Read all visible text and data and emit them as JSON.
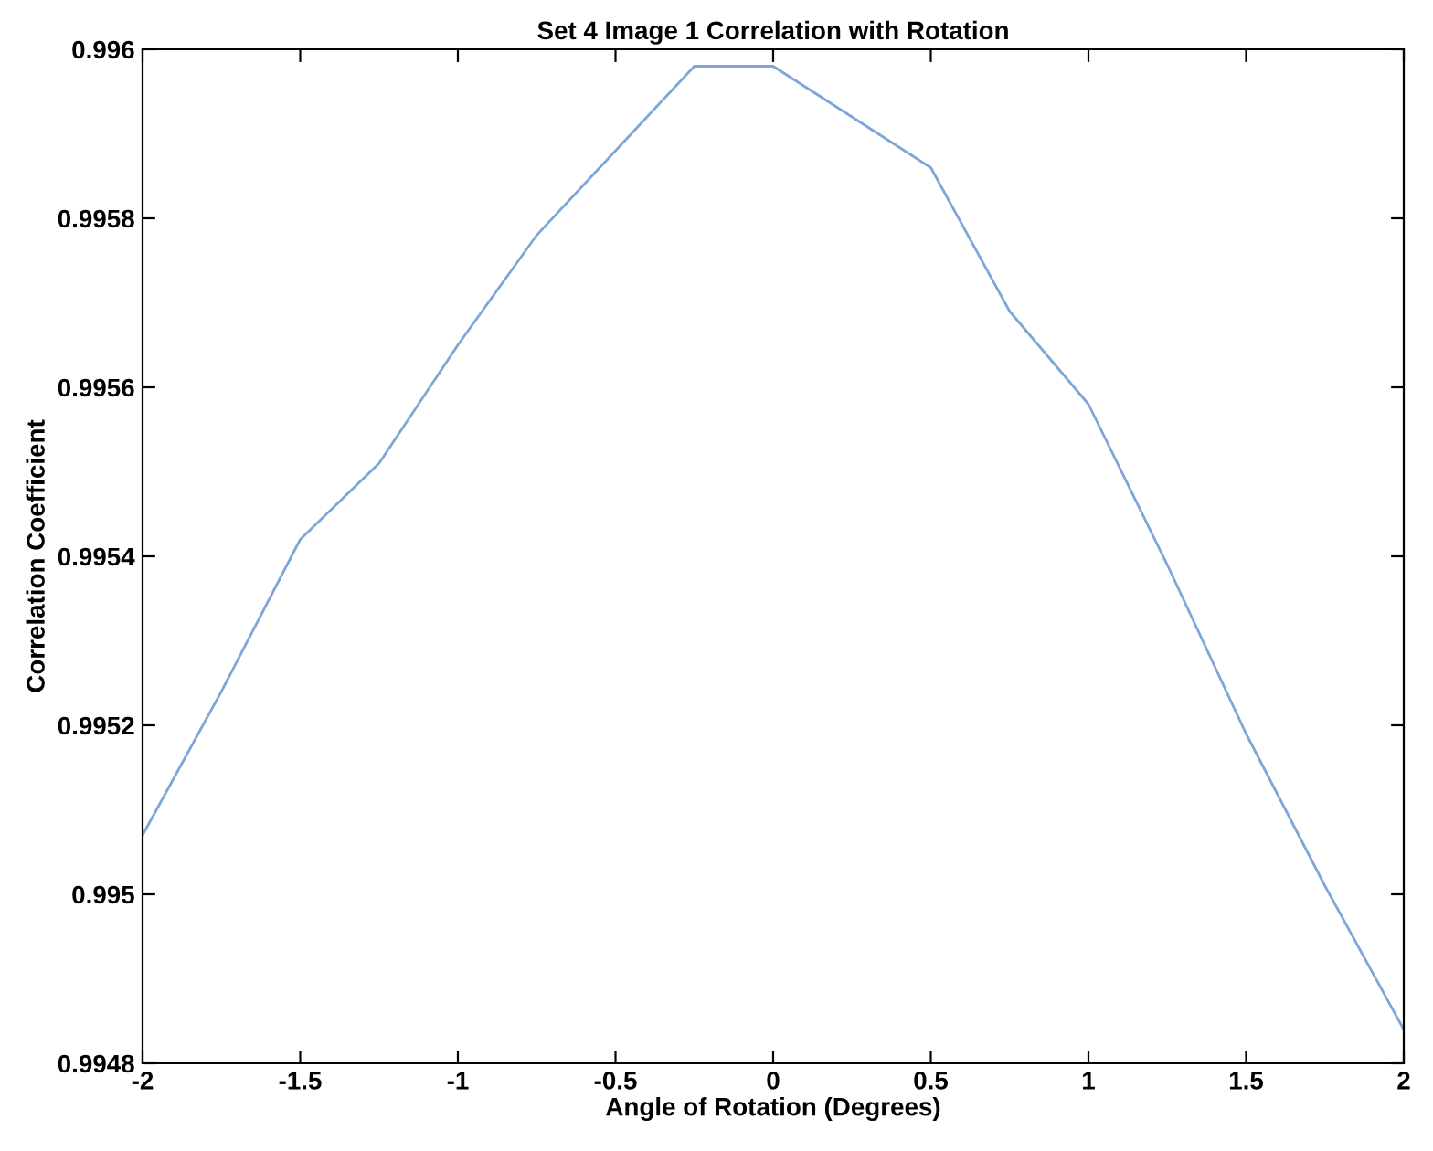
{
  "chart_data": {
    "type": "line",
    "title": "Set 4 Image 1 Correlation with Rotation",
    "xlabel": "Angle of Rotation (Degrees)",
    "ylabel": "Correlation Coefficient",
    "x": [
      -2,
      -1.75,
      -1.5,
      -1.25,
      -1,
      -0.75,
      -0.5,
      -0.25,
      0,
      0.25,
      0.5,
      0.75,
      1,
      1.25,
      1.5,
      1.75,
      2
    ],
    "series": [
      {
        "color": "#7ea6d8",
        "values": [
          0.99507,
          0.99524,
          0.99542,
          0.99551,
          0.99565,
          0.99578,
          0.99588,
          0.99598,
          0.99598,
          0.99592,
          0.99586,
          0.99569,
          0.99558,
          0.99539,
          0.99519,
          0.99501,
          0.99484
        ]
      }
    ],
    "xlim": [
      -2,
      2
    ],
    "ylim": [
      0.9948,
      0.996
    ],
    "xticks": [
      -2,
      -1.5,
      -1,
      -0.5,
      0,
      0.5,
      1,
      1.5,
      2
    ],
    "yticks": [
      0.9948,
      0.995,
      0.9952,
      0.9954,
      0.9956,
      0.9958,
      0.996
    ],
    "grid": false,
    "legend": false,
    "marker": "none",
    "line_style": "solid"
  }
}
